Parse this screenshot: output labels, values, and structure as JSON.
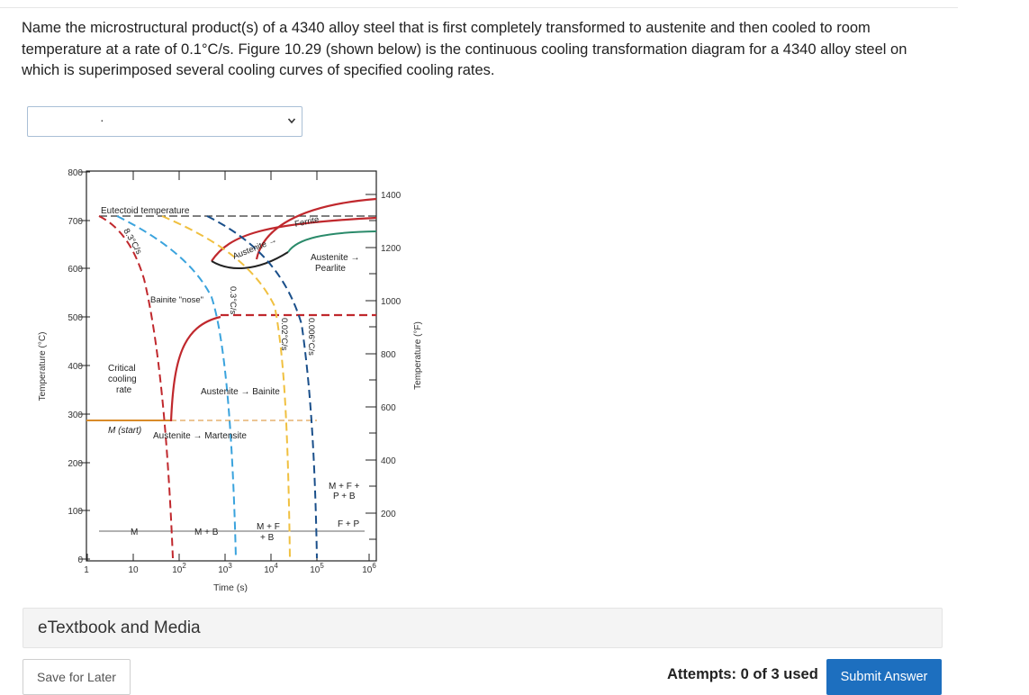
{
  "question": {
    "text": "Name the microstructural product(s) of a 4340 alloy steel that is first completely transformed to austenite and then cooled to room temperature at a rate of 0.1°C/s. Figure 10.29 (shown below) is the continuous cooling transformation diagram for a 4340 alloy steel on which is superimposed several cooling curves of specified cooling rates."
  },
  "answer_select": {
    "selected_value": "·",
    "chevron_icon": "chevron-down-icon"
  },
  "figure": {
    "y_left_label": "Temperature (°C)",
    "y_right_label": "Temperature (°F)",
    "x_label": "Time (s)",
    "y_left_ticks": [
      "800",
      "700",
      "600",
      "500",
      "400",
      "300",
      "200",
      "100",
      "0"
    ],
    "y_right_ticks": [
      "1400",
      "1200",
      "1000",
      "800",
      "600",
      "400",
      "200"
    ],
    "x_ticks": [
      "1",
      "10",
      "10",
      "10",
      "10",
      "10",
      "10"
    ],
    "x_tick_exponents": [
      "",
      "",
      "2",
      "3",
      "4",
      "5",
      "6"
    ],
    "labels": {
      "eutectoid": "Eutectoid temperature",
      "ferrite": "Ferrite",
      "austenite_top": "Austenite",
      "arrow": "→",
      "austenite_pearlite_1": "Austenite →",
      "austenite_pearlite_2": "Pearlite",
      "bainite_nose": "Bainite \"nose\"",
      "critical_1": "Critical",
      "critical_2": "cooling",
      "critical_3": "rate",
      "aus_bainite": "Austenite → Bainite",
      "m_start": "M (start)",
      "aus_martensite": "Austenite → Martensite",
      "mfpb_1": "M + F +",
      "mfpb_2": "P + B",
      "fp": "F + P",
      "m": "M",
      "mb": "M + B",
      "mfb_1": "M + F",
      "mfb_2": "+ B",
      "rate_83": "8.3°C/s",
      "rate_03": "0.3°C/s",
      "rate_002": "0.02°C/s",
      "rate_0006": "0.006°C/s"
    }
  },
  "etextbook": {
    "label": "eTextbook and Media"
  },
  "footer": {
    "save_label": "Save for Later",
    "attempts_text": "Attempts: 0 of 3 used",
    "submit_label": "Submit Answer"
  }
}
